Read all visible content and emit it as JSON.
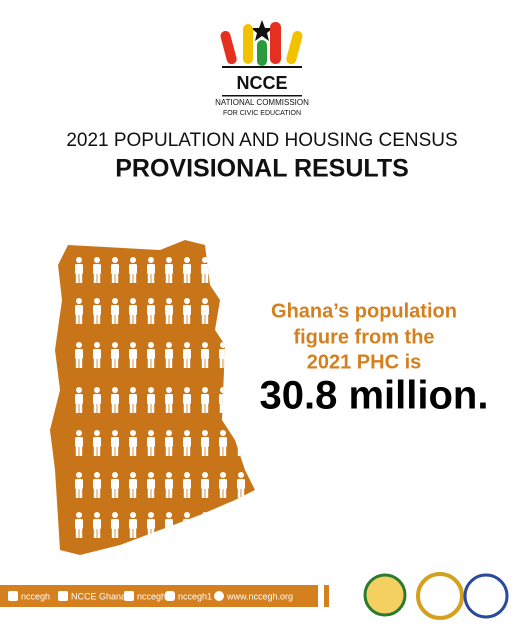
{
  "logo": {
    "acronym": "NCCE",
    "line1": "NATIONAL COMMISSION",
    "line2": "FOR CIVIC EDUCATION"
  },
  "header": {
    "title": "2021 POPULATION AND HOUSING CENSUS",
    "subtitle": "PROVISIONAL RESULTS"
  },
  "statement": {
    "lines": [
      "Ghana’s population",
      "figure from the",
      "2021 PHC is"
    ],
    "figure": "30.8 million."
  },
  "footer": {
    "social": [
      "nccegh",
      "NCCE Ghana",
      "nccegh",
      "nccegh1",
      "www.nccegh.org"
    ]
  }
}
